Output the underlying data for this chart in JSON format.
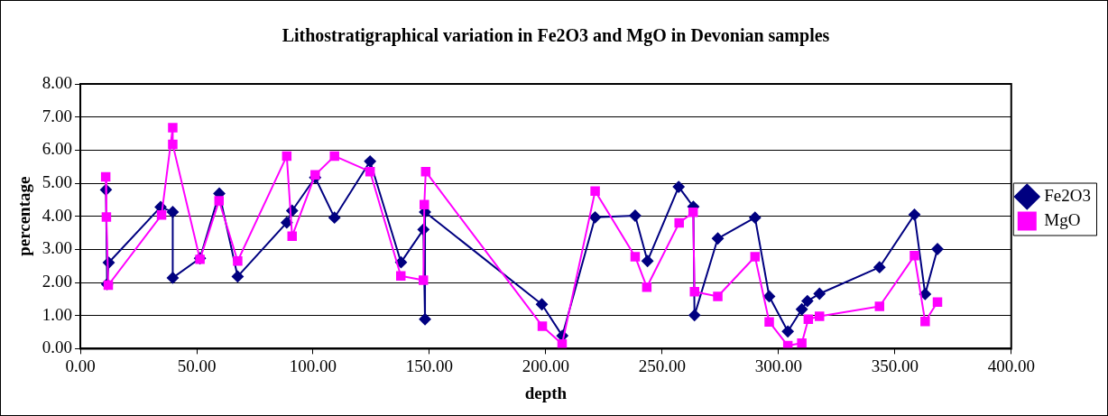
{
  "chart_data": {
    "type": "line",
    "title": "Lithostratigraphical variation in Fe2O3 and MgO in Devonian samples",
    "xlabel": "depth",
    "ylabel": "percentage",
    "xlim": [
      0,
      400
    ],
    "xticks": [
      {
        "value": 0,
        "label": "0.00"
      },
      {
        "value": 50,
        "label": "50.00"
      },
      {
        "value": 100,
        "label": "100.00"
      },
      {
        "value": 150,
        "label": "150.00"
      },
      {
        "value": 200,
        "label": "200.00"
      },
      {
        "value": 250,
        "label": "250.00"
      },
      {
        "value": 300,
        "label": "300.00"
      },
      {
        "value": 350,
        "label": "350.00"
      },
      {
        "value": 400,
        "label": "400.00"
      }
    ],
    "ylim": [
      0,
      8
    ],
    "yticks": [
      {
        "value": 0,
        "label": "0.00"
      },
      {
        "value": 1,
        "label": "1.00"
      },
      {
        "value": 2,
        "label": "2.00"
      },
      {
        "value": 3,
        "label": "3.00"
      },
      {
        "value": 4,
        "label": "4.00"
      },
      {
        "value": 5,
        "label": "5.00"
      },
      {
        "value": 6,
        "label": "6.00"
      },
      {
        "value": 7,
        "label": "7.00"
      },
      {
        "value": 8,
        "label": "8.00"
      }
    ],
    "grid": "y",
    "legend": "right",
    "line_style": "solid",
    "series": [
      {
        "name": "Fe2O3",
        "color": "#000080",
        "marker": "diamond",
        "x": [
          11,
          11.5,
          12.2,
          34.5,
          39.7,
          39.7,
          51.4,
          59.7,
          67.6,
          88.7,
          91,
          100.9,
          109.2,
          124.5,
          137.8,
          147.4,
          148.1,
          148.1,
          198.3,
          207.1,
          221.2,
          238.4,
          243.7,
          257.1,
          263.4,
          263.9,
          273.9,
          289.9,
          296,
          304,
          310,
          312.4,
          317.6,
          343.4,
          358.4,
          363,
          368.3
        ],
        "values": [
          4.8,
          1.95,
          2.6,
          4.28,
          4.13,
          2.14,
          2.73,
          4.69,
          2.18,
          3.81,
          4.17,
          5.17,
          3.96,
          5.66,
          2.61,
          3.6,
          0.89,
          4.13,
          1.34,
          0.39,
          3.97,
          4.02,
          2.65,
          4.89,
          4.29,
          1.01,
          3.33,
          3.96,
          1.58,
          0.52,
          1.19,
          1.44,
          1.66,
          2.46,
          4.05,
          1.65,
          3.01
        ]
      },
      {
        "name": "MgO",
        "color": "#ff00ff",
        "marker": "square",
        "x": [
          10.9,
          11.2,
          12,
          34.9,
          39.7,
          39.7,
          51.4,
          59.6,
          67.6,
          88.7,
          91,
          100.9,
          109.2,
          124.5,
          137.7,
          147.4,
          147.8,
          148.4,
          198.5,
          207,
          221.2,
          238.4,
          243.4,
          257.3,
          263.3,
          263.9,
          273.9,
          289.9,
          296,
          304,
          310,
          312.8,
          317.6,
          343.4,
          358.4,
          363,
          368.3
        ],
        "values": [
          5.19,
          3.98,
          1.92,
          4.04,
          6.68,
          6.17,
          2.7,
          4.47,
          2.65,
          5.82,
          3.4,
          5.25,
          5.82,
          5.35,
          2.2,
          2.07,
          4.35,
          5.35,
          0.68,
          0.14,
          4.76,
          2.78,
          1.86,
          3.8,
          4.12,
          1.72,
          1.58,
          2.78,
          0.81,
          0.09,
          0.17,
          0.89,
          0.98,
          1.28,
          2.81,
          0.82,
          1.41
        ]
      }
    ]
  }
}
